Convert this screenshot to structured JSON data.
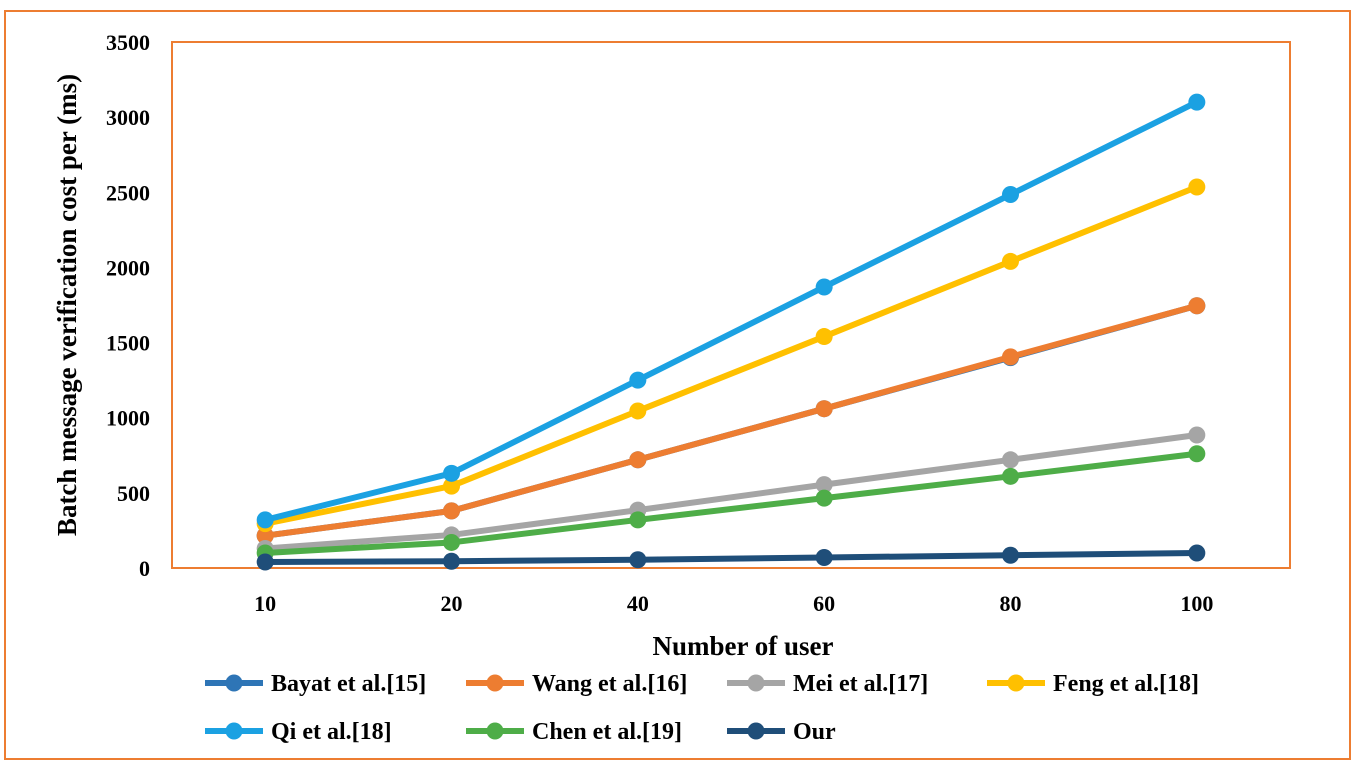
{
  "chart_data": {
    "type": "line",
    "xlabel": "Number of user",
    "ylabel": "Batch message verification cost per (ms)",
    "categories": [
      "10",
      "20",
      "40",
      "60",
      "80",
      "100"
    ],
    "ylim": [
      0,
      3500
    ],
    "yticks": [
      0,
      500,
      1000,
      1500,
      2000,
      2500,
      3000,
      3500
    ],
    "grid": false,
    "legend_position": "bottom",
    "series": [
      {
        "name": "Bayat et al.[15]",
        "color": "#2E75B6",
        "values": [
          215,
          380,
          720,
          1060,
          1400,
          1745
        ]
      },
      {
        "name": "Wang et al.[16]",
        "color": "#ED7D31",
        "values": [
          215,
          380,
          720,
          1060,
          1405,
          1745
        ]
      },
      {
        "name": "Mei et al.[17]",
        "color": "#A5A5A5",
        "values": [
          130,
          220,
          385,
          555,
          720,
          885
        ]
      },
      {
        "name": "Feng et al.[18]",
        "color": "#FFC000",
        "values": [
          295,
          545,
          1045,
          1540,
          2040,
          2535
        ]
      },
      {
        "name": "Qi et al.[18]",
        "color": "#1BA1E2",
        "values": [
          320,
          630,
          1250,
          1870,
          2485,
          3100
        ]
      },
      {
        "name": "Chen et al.[19]",
        "color": "#4EAD48",
        "values": [
          100,
          170,
          320,
          465,
          610,
          760
        ]
      },
      {
        "name": "Our",
        "color": "#1F4E79",
        "values": [
          40,
          45,
          55,
          70,
          85,
          100
        ]
      }
    ]
  }
}
